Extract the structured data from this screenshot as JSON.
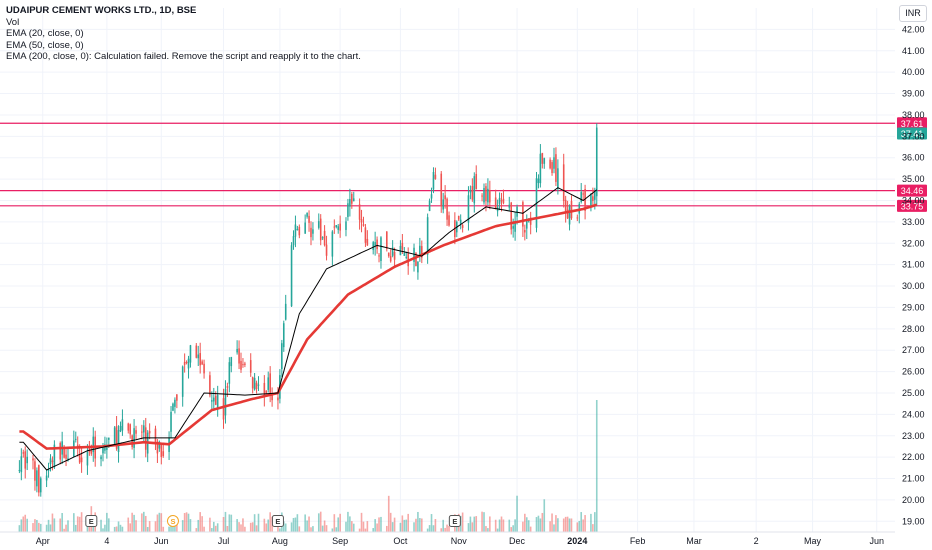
{
  "header": {
    "title": "UDAIPUR CEMENT WORKS LTD., 1D, BSE",
    "lines": [
      "Vol",
      "EMA (20, close, 0)",
      "EMA (50, close, 0)",
      "EMA (200, close, 0): Calculation failed. Remove the script and reapply it to the chart."
    ],
    "currency": "INR"
  },
  "colors": {
    "up": "#26a69a",
    "down": "#ef5350",
    "ema_fast": "#000000",
    "ema_slow": "#e53935",
    "level": "#e91e63",
    "grid": "#f0f3fa"
  },
  "chart_data": {
    "type": "candlestick",
    "symbol": "UDAIPUR CEMENT WORKS LTD.",
    "interval": "1D",
    "exchange": "BSE",
    "ylim": [
      18.5,
      43.0
    ],
    "y_ticks": [
      "42.00",
      "41.00",
      "40.00",
      "39.00",
      "38.00",
      "37.00",
      "36.00",
      "35.00",
      "34.00",
      "33.00",
      "32.00",
      "31.00",
      "30.00",
      "29.00",
      "28.00",
      "27.00",
      "26.00",
      "25.00",
      "24.00",
      "23.00",
      "22.00",
      "21.00",
      "20.00",
      "19.00"
    ],
    "x_ticks": [
      "Apr",
      "4",
      "Jun",
      "Jul",
      "Aug",
      "Sep",
      "Oct",
      "Nov",
      "Dec",
      "2024",
      "Feb",
      "Mar",
      "2",
      "May",
      "Jun"
    ],
    "price_series_knots": [
      {
        "date": "2023-03-24",
        "price": 22.0
      },
      {
        "date": "2023-03-31",
        "price": 20.5
      },
      {
        "date": "2023-04-07",
        "price": 22.2
      },
      {
        "date": "2023-05-01",
        "price": 22.4
      },
      {
        "date": "2023-05-12",
        "price": 23.2
      },
      {
        "date": "2023-05-23",
        "price": 22.9
      },
      {
        "date": "2023-06-02",
        "price": 22.4
      },
      {
        "date": "2023-06-16",
        "price": 27.5
      },
      {
        "date": "2023-06-23",
        "price": 26.0
      },
      {
        "date": "2023-07-03",
        "price": 24.0
      },
      {
        "date": "2023-07-07",
        "price": 27.0
      },
      {
        "date": "2023-07-21",
        "price": 25.3
      },
      {
        "date": "2023-07-31",
        "price": 25.2
      },
      {
        "date": "2023-08-07",
        "price": 32.0
      },
      {
        "date": "2023-08-14",
        "price": 33.2
      },
      {
        "date": "2023-08-25",
        "price": 32.0
      },
      {
        "date": "2023-09-08",
        "price": 33.8
      },
      {
        "date": "2023-09-15",
        "price": 32.0
      },
      {
        "date": "2023-09-29",
        "price": 31.5
      },
      {
        "date": "2023-10-13",
        "price": 31.5
      },
      {
        "date": "2023-10-20",
        "price": 35.5
      },
      {
        "date": "2023-10-27",
        "price": 32.7
      },
      {
        "date": "2023-11-03",
        "price": 33.0
      },
      {
        "date": "2023-11-10",
        "price": 35.0
      },
      {
        "date": "2023-11-17",
        "price": 34.0
      },
      {
        "date": "2023-11-28",
        "price": 33.2
      },
      {
        "date": "2023-12-08",
        "price": 33.0
      },
      {
        "date": "2023-12-13",
        "price": 35.8
      },
      {
        "date": "2023-12-20",
        "price": 35.5
      },
      {
        "date": "2023-12-27",
        "price": 33.5
      },
      {
        "date": "2024-01-05",
        "price": 34.0
      },
      {
        "date": "2024-01-10",
        "price": 34.3
      },
      {
        "date": "2024-01-11",
        "price": 37.41
      }
    ],
    "ema_fast_knots": [
      {
        "date": "2023-03-22",
        "value": 22.7
      },
      {
        "date": "2023-04-03",
        "value": 21.4
      },
      {
        "date": "2023-04-24",
        "value": 22.3
      },
      {
        "date": "2023-05-23",
        "value": 22.9
      },
      {
        "date": "2023-06-08",
        "value": 22.9
      },
      {
        "date": "2023-06-23",
        "value": 25.0
      },
      {
        "date": "2023-07-14",
        "value": 24.9
      },
      {
        "date": "2023-07-31",
        "value": 25.0
      },
      {
        "date": "2023-08-11",
        "value": 28.7
      },
      {
        "date": "2023-08-25",
        "value": 30.8
      },
      {
        "date": "2023-09-20",
        "value": 31.9
      },
      {
        "date": "2023-10-13",
        "value": 31.4
      },
      {
        "date": "2023-10-27",
        "value": 32.5
      },
      {
        "date": "2023-11-15",
        "value": 33.7
      },
      {
        "date": "2023-12-04",
        "value": 33.4
      },
      {
        "date": "2023-12-22",
        "value": 34.6
      },
      {
        "date": "2024-01-04",
        "value": 34.0
      },
      {
        "date": "2024-01-11",
        "value": 34.5
      }
    ],
    "ema_slow_knots": [
      {
        "date": "2023-03-22",
        "value": 23.2
      },
      {
        "date": "2023-04-03",
        "value": 22.4
      },
      {
        "date": "2023-05-02",
        "value": 22.5
      },
      {
        "date": "2023-05-23",
        "value": 22.7
      },
      {
        "date": "2023-06-05",
        "value": 22.6
      },
      {
        "date": "2023-06-27",
        "value": 24.2
      },
      {
        "date": "2023-07-17",
        "value": 24.7
      },
      {
        "date": "2023-07-31",
        "value": 25.0
      },
      {
        "date": "2023-08-15",
        "value": 27.5
      },
      {
        "date": "2023-09-05",
        "value": 29.6
      },
      {
        "date": "2023-09-29",
        "value": 30.9
      },
      {
        "date": "2023-10-24",
        "value": 31.9
      },
      {
        "date": "2023-11-20",
        "value": 32.8
      },
      {
        "date": "2023-12-18",
        "value": 33.3
      },
      {
        "date": "2024-01-04",
        "value": 33.6
      },
      {
        "date": "2024-01-11",
        "value": 33.8
      }
    ],
    "horizontal_levels": [
      37.61,
      34.46,
      33.75
    ],
    "level_labels": [
      "37.61",
      "34.46",
      "33.75"
    ],
    "last_price": 37.41,
    "last_price_label": "37.41",
    "volume": {
      "note": "volume bars in volume units relative to peak; last day spike",
      "scale_max": 1.0,
      "last_day": 1.0,
      "typical": 0.12
    },
    "event_markers": [
      {
        "date": "2023-04-26",
        "label": "E"
      },
      {
        "date": "2023-06-07",
        "label": "S"
      },
      {
        "date": "2023-07-31",
        "label": "E"
      },
      {
        "date": "2023-10-30",
        "label": "E"
      }
    ]
  }
}
